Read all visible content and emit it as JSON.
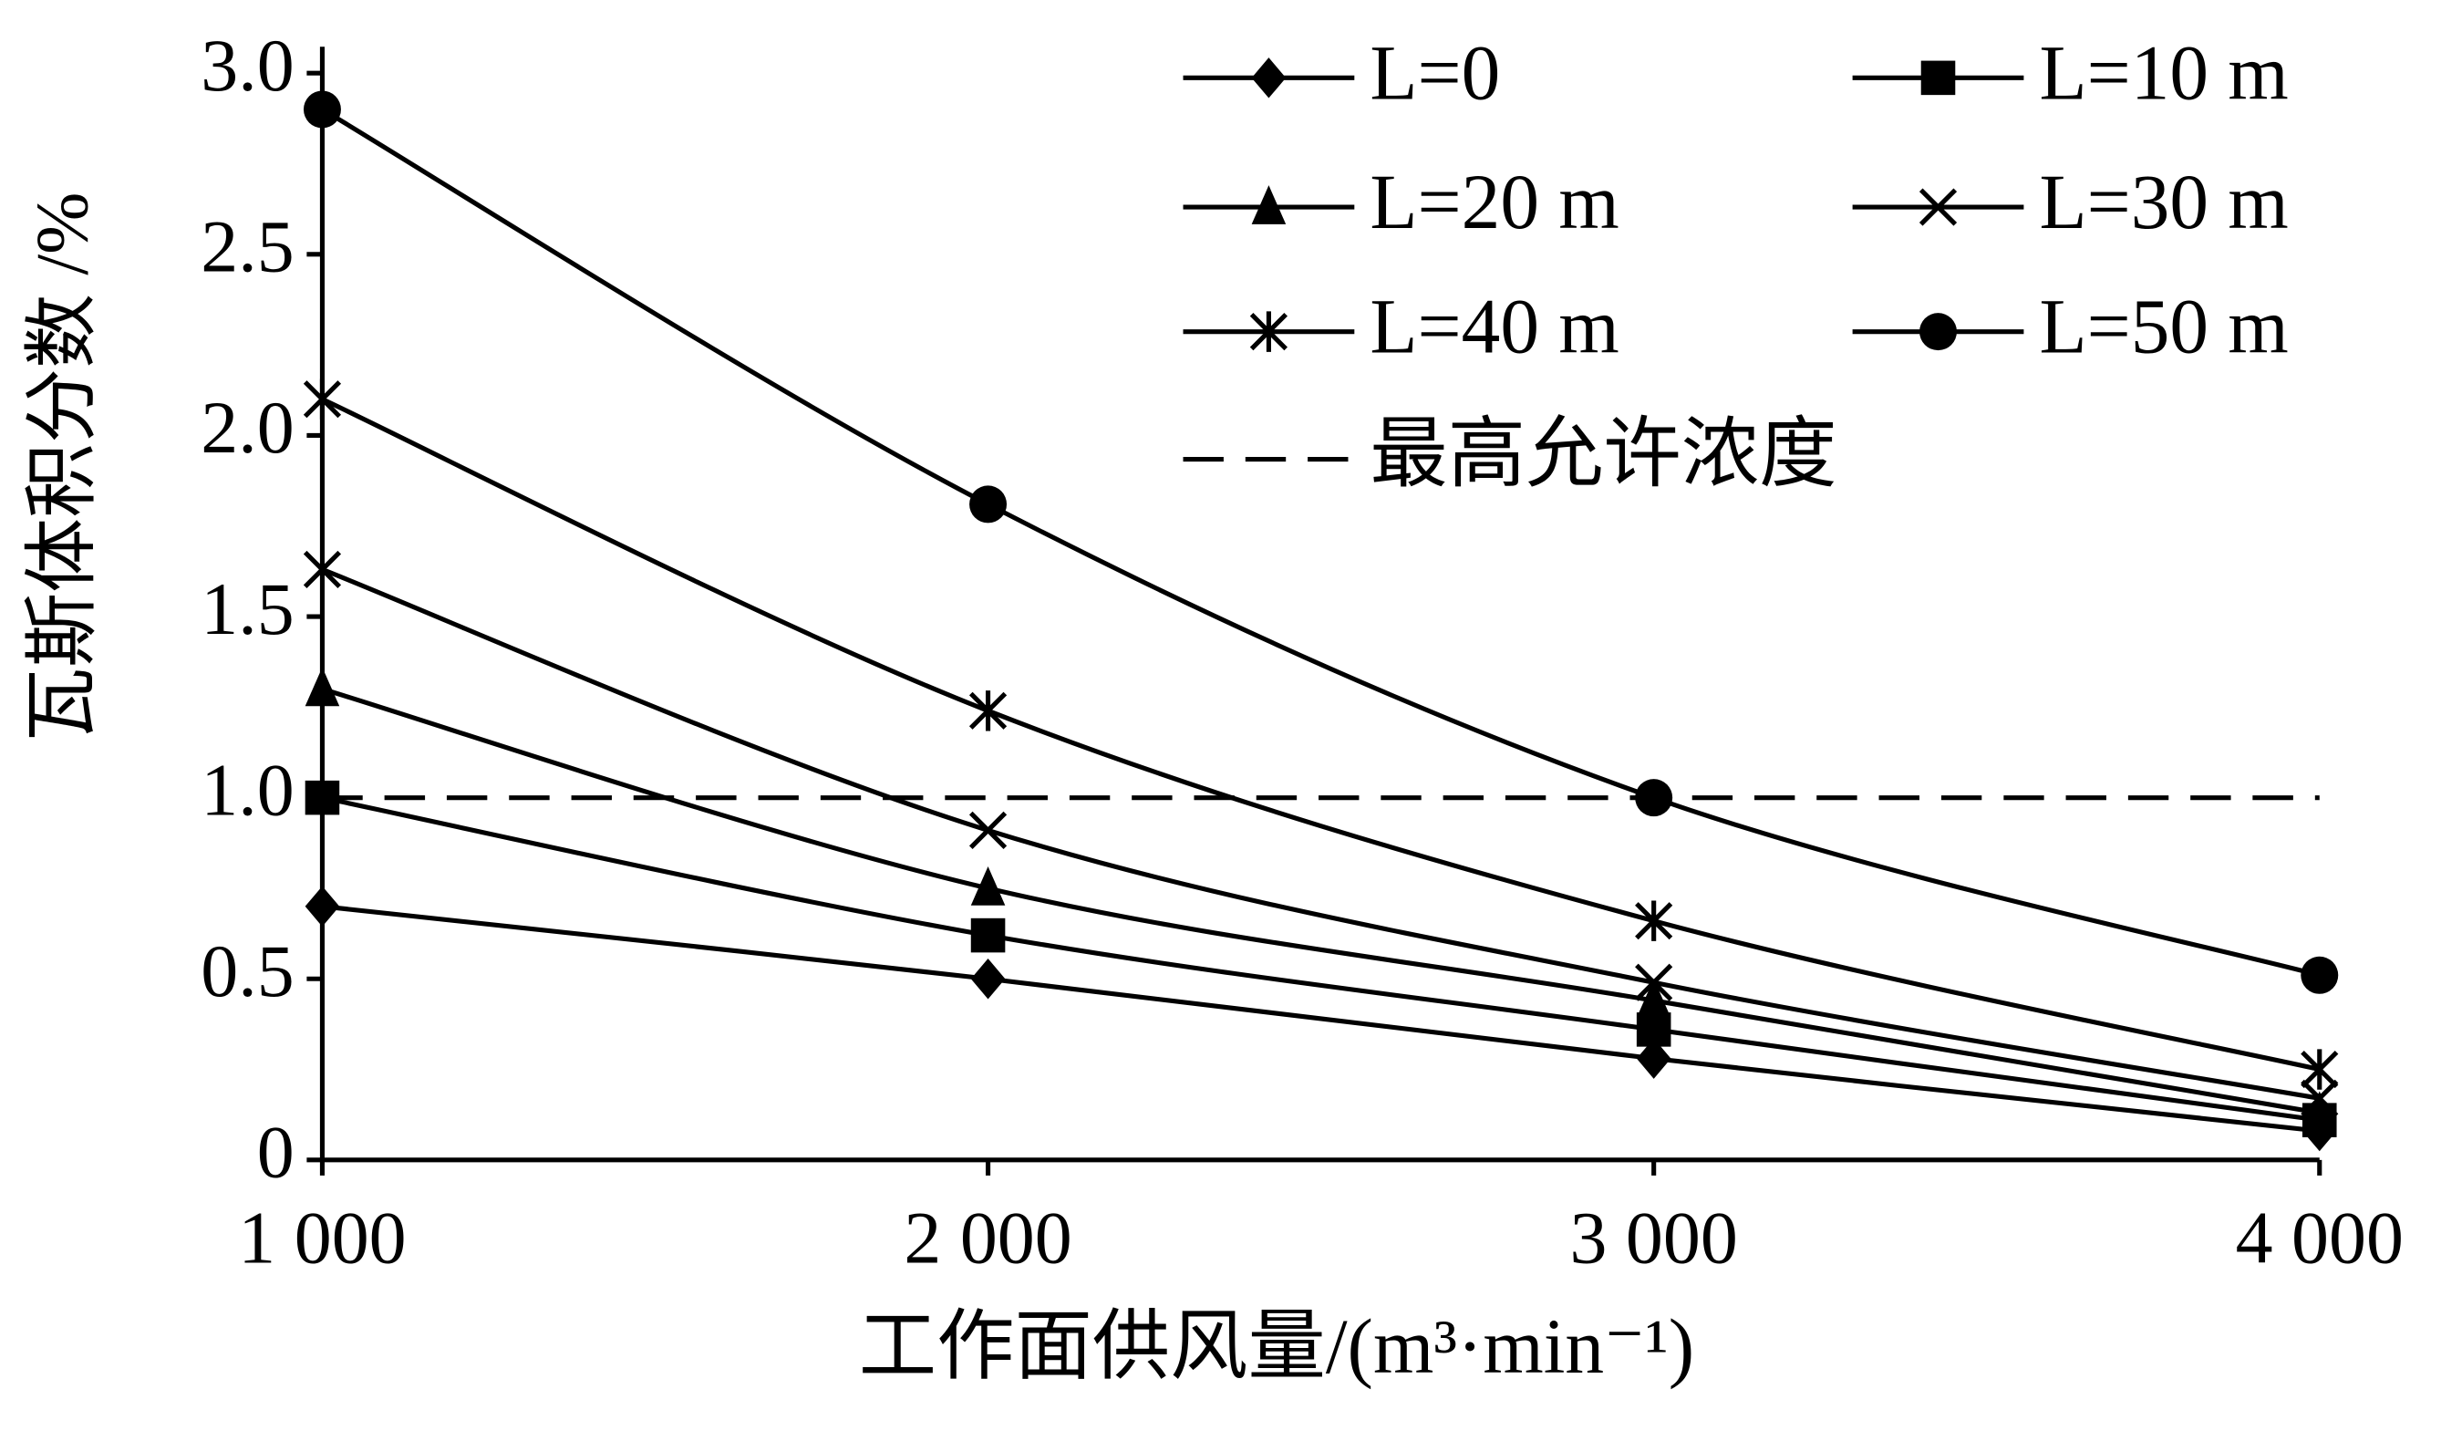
{
  "chart_data": {
    "type": "line",
    "x_label": "工作面供风量/(m³·min⁻¹)",
    "y_label": "瓦斯体积分数 /%",
    "x": [
      1000,
      2000,
      3000,
      4000
    ],
    "xlim": [
      1000,
      4000
    ],
    "xticks": [
      {
        "value": 1000,
        "label": "1 000"
      },
      {
        "value": 2000,
        "label": "2 000"
      },
      {
        "value": 3000,
        "label": "3 000"
      },
      {
        "value": 4000,
        "label": "4 000"
      }
    ],
    "ylim": [
      0,
      3
    ],
    "yticks": [
      0,
      0.5,
      {
        "value": 1,
        "label": "1.0"
      },
      1.5,
      {
        "value": 2,
        "label": "2.0"
      },
      2.5,
      {
        "value": 3,
        "label": "3.0"
      }
    ],
    "series": [
      {
        "name": "L=0",
        "color": "#000000",
        "marker": "diamond",
        "values": [
          0.7,
          0.5,
          0.28,
          0.08
        ]
      },
      {
        "name": "L=10 m",
        "color": "#000000",
        "marker": "square",
        "values": [
          1.0,
          0.62,
          0.36,
          0.11
        ]
      },
      {
        "name": "L=20 m",
        "color": "#000000",
        "marker": "triangle",
        "values": [
          1.3,
          0.75,
          0.44,
          0.13
        ]
      },
      {
        "name": "L=30 m",
        "color": "#000000",
        "marker": "x",
        "values": [
          1.63,
          0.91,
          0.49,
          0.17
        ]
      },
      {
        "name": "L=40 m",
        "color": "#000000",
        "marker": "asterisk",
        "values": [
          2.1,
          1.24,
          0.66,
          0.25
        ]
      },
      {
        "name": "L=50 m",
        "color": "#000000",
        "marker": "circle",
        "values": [
          2.9,
          1.81,
          1.0,
          0.51
        ]
      },
      {
        "name": "最高允许浓度",
        "color": "#000000",
        "marker": "none",
        "dashed": true,
        "values": [
          1.0,
          1.0,
          1.0,
          1.0
        ]
      }
    ]
  }
}
